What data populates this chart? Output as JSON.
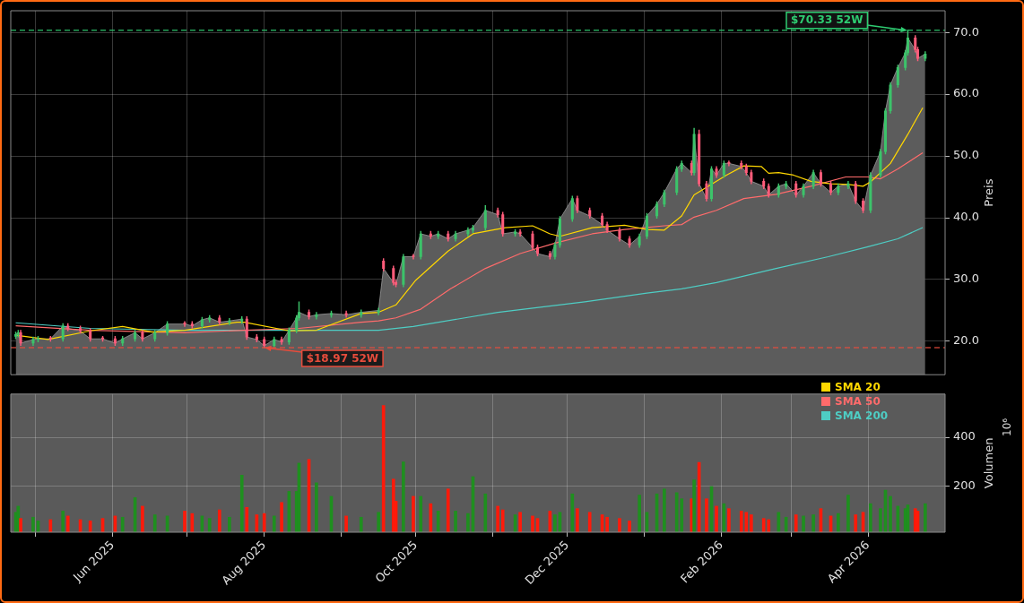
{
  "chart_data": [
    {
      "type": "candlestick",
      "ylabel": "Preis",
      "xlim": [
        "2025-04-21",
        "2026-05-02"
      ],
      "xticks": [
        {
          "value": "2025-05-01",
          "label": null
        },
        {
          "value": "2025-06-01",
          "label": null
        },
        {
          "value": "2025-07-01",
          "label": null
        },
        {
          "value": "2025-08-01",
          "label": null
        },
        {
          "value": "2025-09-01",
          "label": null
        },
        {
          "value": "2025-10-01",
          "label": null
        },
        {
          "value": "2025-11-01",
          "label": null
        },
        {
          "value": "2025-12-01",
          "label": null
        },
        {
          "value": "2026-01-01",
          "label": null
        },
        {
          "value": "2026-02-01",
          "label": null
        },
        {
          "value": "2026-03-01",
          "label": null
        },
        {
          "value": "2026-04-01",
          "label": null
        }
      ],
      "ylim": [
        14.6,
        73.5
      ],
      "yticks": [
        {
          "value": 20,
          "label": "20.0"
        },
        {
          "value": 30,
          "label": "30.0"
        },
        {
          "value": 40,
          "label": "40.0"
        },
        {
          "value": 50,
          "label": "50.0"
        },
        {
          "value": 60,
          "label": "60.0"
        },
        {
          "value": 70,
          "label": "70.0"
        }
      ],
      "tick_labels": "y",
      "grid": true,
      "legend": "bottom right",
      "x": [
        "2025-04-23",
        "2025-04-24",
        "2025-04-25",
        "2025-04-30",
        "2025-05-02",
        "2025-05-07",
        "2025-05-12",
        "2025-05-14",
        "2025-05-19",
        "2025-05-23",
        "2025-05-28",
        "2025-06-02",
        "2025-06-05",
        "2025-06-10",
        "2025-06-13",
        "2025-06-18",
        "2025-06-23",
        "2025-06-30",
        "2025-07-03",
        "2025-07-07",
        "2025-07-10",
        "2025-07-14",
        "2025-07-18",
        "2025-07-23",
        "2025-07-25",
        "2025-07-29",
        "2025-08-01",
        "2025-08-05",
        "2025-08-08",
        "2025-08-11",
        "2025-08-14",
        "2025-08-15",
        "2025-08-19",
        "2025-08-22",
        "2025-08-28",
        "2025-09-03",
        "2025-09-09",
        "2025-09-16",
        "2025-09-18",
        "2025-09-22",
        "2025-09-23",
        "2025-09-26",
        "2025-09-30",
        "2025-10-03",
        "2025-10-07",
        "2025-10-10",
        "2025-10-14",
        "2025-10-17",
        "2025-10-22",
        "2025-10-24",
        "2025-10-29",
        "2025-11-03",
        "2025-11-05",
        "2025-11-10",
        "2025-11-12",
        "2025-11-17",
        "2025-11-19",
        "2025-11-24",
        "2025-11-26",
        "2025-11-28",
        "2025-12-03",
        "2025-12-05",
        "2025-12-10",
        "2025-12-15",
        "2025-12-17",
        "2025-12-22",
        "2025-12-26",
        "2025-12-30",
        "2026-01-02",
        "2026-01-06",
        "2026-01-09",
        "2026-01-14",
        "2026-01-16",
        "2026-01-20",
        "2026-01-21",
        "2026-01-23",
        "2026-01-26",
        "2026-01-28",
        "2026-01-30",
        "2026-02-02",
        "2026-02-04",
        "2026-02-09",
        "2026-02-11",
        "2026-02-13",
        "2026-02-18",
        "2026-02-20",
        "2026-02-24",
        "2026-02-27",
        "2026-03-03",
        "2026-03-06",
        "2026-03-10",
        "2026-03-13",
        "2026-03-17",
        "2026-03-20",
        "2026-03-24",
        "2026-03-27",
        "2026-03-30",
        "2026-04-02",
        "2026-04-06",
        "2026-04-08",
        "2026-04-10",
        "2026-04-13",
        "2026-04-16",
        "2026-04-17",
        "2026-04-20",
        "2026-04-21",
        "2026-04-24"
      ],
      "ohlc": [
        [
          20.8,
          21.5,
          20.4,
          21.1
        ],
        [
          21.1,
          21.8,
          20.7,
          21.4
        ],
        [
          21.4,
          21.8,
          19.3,
          19.7
        ],
        [
          19.7,
          20.7,
          19.3,
          20.3
        ],
        [
          20.3,
          20.8,
          19.9,
          20.4
        ],
        [
          20.4,
          20.8,
          20.0,
          20.4
        ],
        [
          20.4,
          22.9,
          20.0,
          22.5
        ],
        [
          22.5,
          22.9,
          21.7,
          22.1
        ],
        [
          22.1,
          22.5,
          21.3,
          21.7
        ],
        [
          21.7,
          22.1,
          20.0,
          20.4
        ],
        [
          20.4,
          20.8,
          20.0,
          20.4
        ],
        [
          20.4,
          20.8,
          19.3,
          19.7
        ],
        [
          19.7,
          20.8,
          19.3,
          20.4
        ],
        [
          20.4,
          21.8,
          20.0,
          21.4
        ],
        [
          21.4,
          21.8,
          20.0,
          20.4
        ],
        [
          20.4,
          21.8,
          20.0,
          21.4
        ],
        [
          21.4,
          23.2,
          21.0,
          22.8
        ],
        [
          22.8,
          23.2,
          22.4,
          22.8
        ],
        [
          22.8,
          23.2,
          22.1,
          22.5
        ],
        [
          22.5,
          23.9,
          22.1,
          23.5
        ],
        [
          23.5,
          24.2,
          23.1,
          23.8
        ],
        [
          23.8,
          24.2,
          22.7,
          23.1
        ],
        [
          23.1,
          23.7,
          22.7,
          23.3
        ],
        [
          23.3,
          24.0,
          22.9,
          23.6
        ],
        [
          23.6,
          24.0,
          20.3,
          20.7
        ],
        [
          20.7,
          21.1,
          19.9,
          20.3
        ],
        [
          20.3,
          20.7,
          18.97,
          19.3
        ],
        [
          19.3,
          20.7,
          19.0,
          20.3
        ],
        [
          20.3,
          20.7,
          19.5,
          19.9
        ],
        [
          19.9,
          22.2,
          19.5,
          21.8
        ],
        [
          21.8,
          24.2,
          21.4,
          23.8
        ],
        [
          23.8,
          26.4,
          23.4,
          24.7
        ],
        [
          24.7,
          25.1,
          23.6,
          24.0
        ],
        [
          24.0,
          24.7,
          23.6,
          24.3
        ],
        [
          24.3,
          24.9,
          23.9,
          24.5
        ],
        [
          24.5,
          24.9,
          23.9,
          24.3
        ],
        [
          24.3,
          25.1,
          23.9,
          24.7
        ],
        [
          24.7,
          25.4,
          24.3,
          25.0
        ],
        [
          33.0,
          33.4,
          31.4,
          31.8
        ],
        [
          31.8,
          32.2,
          29.1,
          29.5
        ],
        [
          29.5,
          29.9,
          28.8,
          29.2
        ],
        [
          29.2,
          34.1,
          28.8,
          33.7
        ],
        [
          33.7,
          34.1,
          33.3,
          33.7
        ],
        [
          33.7,
          37.8,
          33.3,
          37.4
        ],
        [
          37.4,
          37.8,
          36.6,
          37.0
        ],
        [
          37.0,
          37.8,
          36.6,
          37.4
        ],
        [
          37.4,
          37.8,
          36.2,
          36.6
        ],
        [
          36.6,
          37.8,
          36.2,
          37.4
        ],
        [
          37.4,
          38.4,
          37.0,
          38.0
        ],
        [
          38.0,
          38.8,
          37.6,
          38.4
        ],
        [
          38.4,
          42.0,
          38.0,
          41.2
        ],
        [
          41.2,
          41.6,
          40.1,
          40.5
        ],
        [
          40.5,
          40.9,
          37.0,
          37.4
        ],
        [
          37.4,
          38.1,
          37.0,
          37.7
        ],
        [
          37.7,
          38.1,
          37.0,
          37.4
        ],
        [
          37.4,
          37.8,
          34.8,
          35.2
        ],
        [
          35.2,
          35.6,
          33.8,
          34.2
        ],
        [
          34.2,
          34.6,
          33.3,
          33.7
        ],
        [
          33.7,
          36.0,
          33.3,
          35.6
        ],
        [
          35.6,
          40.2,
          35.2,
          39.8
        ],
        [
          39.8,
          43.5,
          39.4,
          43.1
        ],
        [
          43.1,
          43.5,
          40.8,
          41.2
        ],
        [
          41.2,
          41.6,
          39.9,
          40.3
        ],
        [
          40.3,
          40.7,
          38.5,
          38.9
        ],
        [
          38.9,
          39.3,
          37.6,
          38.0
        ],
        [
          38.0,
          38.4,
          36.2,
          36.6
        ],
        [
          36.6,
          37.0,
          35.2,
          35.6
        ],
        [
          35.6,
          37.4,
          35.2,
          37.0
        ],
        [
          37.0,
          40.7,
          36.6,
          40.3
        ],
        [
          40.3,
          42.6,
          39.9,
          42.2
        ],
        [
          42.2,
          44.5,
          41.8,
          44.1
        ],
        [
          44.1,
          48.3,
          43.7,
          47.9
        ],
        [
          47.9,
          49.2,
          47.5,
          48.8
        ],
        [
          48.8,
          49.2,
          46.9,
          47.3
        ],
        [
          47.3,
          54.5,
          46.9,
          53.5
        ],
        [
          53.5,
          54.2,
          45.1,
          45.5
        ],
        [
          45.5,
          45.9,
          42.7,
          43.1
        ],
        [
          43.1,
          48.3,
          42.7,
          47.9
        ],
        [
          47.9,
          48.3,
          46.5,
          46.9
        ],
        [
          46.9,
          49.2,
          46.5,
          48.8
        ],
        [
          48.8,
          49.2,
          48.4,
          48.8
        ],
        [
          48.8,
          49.2,
          47.9,
          48.3
        ],
        [
          48.3,
          48.7,
          46.9,
          47.3
        ],
        [
          47.3,
          47.7,
          45.5,
          45.9
        ],
        [
          45.9,
          46.3,
          44.7,
          45.1
        ],
        [
          45.1,
          45.5,
          43.3,
          43.7
        ],
        [
          43.7,
          45.5,
          43.3,
          45.1
        ],
        [
          45.1,
          45.9,
          44.7,
          45.5
        ],
        [
          45.5,
          45.9,
          43.3,
          43.7
        ],
        [
          43.7,
          45.5,
          43.3,
          45.1
        ],
        [
          45.1,
          47.7,
          44.7,
          47.3
        ],
        [
          47.3,
          47.7,
          45.1,
          45.5
        ],
        [
          45.5,
          45.9,
          43.7,
          44.1
        ],
        [
          44.1,
          45.5,
          43.7,
          45.1
        ],
        [
          45.1,
          45.9,
          44.7,
          45.5
        ],
        [
          45.5,
          45.9,
          42.3,
          42.7
        ],
        [
          42.7,
          43.1,
          40.8,
          41.2
        ],
        [
          41.2,
          47.3,
          40.8,
          46.9
        ],
        [
          46.9,
          51.1,
          46.5,
          50.7
        ],
        [
          50.7,
          57.7,
          50.3,
          57.3
        ],
        [
          57.3,
          61.9,
          56.9,
          61.5
        ],
        [
          61.5,
          64.7,
          61.1,
          64.3
        ],
        [
          64.3,
          67.1,
          63.9,
          66.7
        ],
        [
          66.7,
          70.33,
          66.3,
          69.1
        ],
        [
          69.1,
          69.5,
          66.8,
          67.2
        ],
        [
          67.2,
          67.6,
          65.4,
          65.8
        ],
        [
          65.8,
          66.9,
          65.4,
          66.5
        ]
      ],
      "series": [
        {
          "type": "area",
          "color": "#5c5c5c",
          "values": [
            21.1,
            21.4,
            19.7,
            20.3,
            20.4,
            20.4,
            22.5,
            22.1,
            21.7,
            20.4,
            20.4,
            19.7,
            20.4,
            21.4,
            20.4,
            21.4,
            22.8,
            22.8,
            22.5,
            23.5,
            23.8,
            23.1,
            23.3,
            23.6,
            20.7,
            20.3,
            19.3,
            20.3,
            19.9,
            21.8,
            23.8,
            24.7,
            24.0,
            24.3,
            24.5,
            24.3,
            24.7,
            25.0,
            31.8,
            29.5,
            29.2,
            33.7,
            33.7,
            37.4,
            37.0,
            37.4,
            36.6,
            37.4,
            38.0,
            38.4,
            41.2,
            40.5,
            37.4,
            37.7,
            37.4,
            35.2,
            34.2,
            33.7,
            35.6,
            39.8,
            43.1,
            41.2,
            40.3,
            38.9,
            38.0,
            36.6,
            35.6,
            37.0,
            40.3,
            42.2,
            44.1,
            47.9,
            48.8,
            47.3,
            53.5,
            45.5,
            43.1,
            47.9,
            46.9,
            48.8,
            48.8,
            48.3,
            47.3,
            45.9,
            45.1,
            43.7,
            45.1,
            45.5,
            43.7,
            45.1,
            47.3,
            45.5,
            44.1,
            45.1,
            45.5,
            42.7,
            41.2,
            46.9,
            50.7,
            57.3,
            61.5,
            64.3,
            66.7,
            69.1,
            67.2,
            65.8,
            66.5
          ]
        },
        {
          "type": "line",
          "name": "SMA 20",
          "color": "#ffd700",
          "x": [
            "2025-04-23",
            "2025-05-06",
            "2025-05-23",
            "2025-06-05",
            "2025-06-17",
            "2025-06-30",
            "2025-07-21",
            "2025-07-24",
            "2025-08-11",
            "2025-08-22",
            "2025-09-09",
            "2025-09-16",
            "2025-09-23",
            "2025-10-01",
            "2025-10-14",
            "2025-10-24",
            "2025-11-06",
            "2025-11-17",
            "2025-11-24",
            "2025-11-28",
            "2025-12-11",
            "2025-12-24",
            "2026-01-02",
            "2026-01-09",
            "2026-01-16",
            "2026-01-21",
            "2026-02-03",
            "2026-02-10",
            "2026-02-17",
            "2026-02-20",
            "2026-02-24",
            "2026-03-02",
            "2026-03-09",
            "2026-03-17",
            "2026-03-24",
            "2026-03-30",
            "2026-04-02",
            "2026-04-10",
            "2026-04-17",
            "2026-04-23"
          ],
          "values": [
            21.0,
            20.3,
            21.7,
            22.4,
            21.5,
            21.8,
            23.1,
            23.1,
            21.7,
            21.8,
            24.5,
            24.7,
            25.9,
            29.9,
            34.6,
            37.4,
            38.4,
            38.7,
            37.4,
            37.0,
            38.4,
            38.8,
            38.1,
            38.0,
            40.3,
            43.7,
            46.9,
            48.4,
            48.3,
            47.2,
            47.3,
            46.9,
            45.9,
            45.5,
            45.4,
            45.1,
            45.8,
            48.8,
            53.5,
            57.8
          ]
        },
        {
          "type": "line",
          "name": "SMA 50",
          "color": "#ff6b6b",
          "x": [
            "2025-04-23",
            "2025-05-23",
            "2025-06-30",
            "2025-07-24",
            "2025-08-15",
            "2025-09-09",
            "2025-09-16",
            "2025-09-23",
            "2025-10-03",
            "2025-10-15",
            "2025-10-29",
            "2025-11-12",
            "2025-11-26",
            "2025-12-11",
            "2025-12-24",
            "2026-01-09",
            "2026-01-16",
            "2026-01-21",
            "2026-01-30",
            "2026-02-10",
            "2026-02-23",
            "2026-03-09",
            "2026-03-23",
            "2026-04-01",
            "2026-04-06",
            "2026-04-13",
            "2026-04-23"
          ],
          "values": [
            22.5,
            21.8,
            21.4,
            21.8,
            22.1,
            23.1,
            23.3,
            23.8,
            25.2,
            28.5,
            31.8,
            34.2,
            35.9,
            37.4,
            38.1,
            38.7,
            38.9,
            40.1,
            41.2,
            43.1,
            43.8,
            45.1,
            46.6,
            46.6,
            46.3,
            47.9,
            50.5
          ]
        },
        {
          "type": "line",
          "name": "SMA 200",
          "color": "#4ecdc4",
          "x": [
            "2025-04-23",
            "2025-05-23",
            "2025-06-30",
            "2025-08-15",
            "2025-09-16",
            "2025-09-30",
            "2025-11-03",
            "2025-12-08",
            "2026-01-02",
            "2026-01-16",
            "2026-01-30",
            "2026-02-23",
            "2026-03-16",
            "2026-04-01",
            "2026-04-13",
            "2026-04-23"
          ],
          "values": [
            23.0,
            22.1,
            21.8,
            21.8,
            21.8,
            22.4,
            24.7,
            26.4,
            27.8,
            28.5,
            29.5,
            31.8,
            33.7,
            35.3,
            36.6,
            38.4
          ]
        }
      ],
      "ref_lines": [
        {
          "axis": "y",
          "value": 70.33,
          "label": "$70.33 52W",
          "color": "#2ecc71",
          "line_style": "dashed"
        },
        {
          "axis": "y",
          "value": 18.97,
          "label": "$18.97 52W",
          "color": "#e74c3c",
          "line_style": "dashed"
        }
      ]
    },
    {
      "type": "bar",
      "ylabel": "Volumen",
      "annotations": [
        "10⁶"
      ],
      "xlim": [
        "2025-04-21",
        "2026-05-02"
      ],
      "xticks": [
        {
          "value": "2025-05-01",
          "label": null
        },
        {
          "value": "2025-06-01",
          "label": "Jun 2025"
        },
        {
          "value": "2025-07-01",
          "label": null
        },
        {
          "value": "2025-08-01",
          "label": "Aug 2025"
        },
        {
          "value": "2025-09-01",
          "label": null
        },
        {
          "value": "2025-10-01",
          "label": "Oct 2025"
        },
        {
          "value": "2025-11-01",
          "label": null
        },
        {
          "value": "2025-12-01",
          "label": "Dec 2025"
        },
        {
          "value": "2026-01-01",
          "label": null
        },
        {
          "value": "2026-02-01",
          "label": "Feb 2026"
        },
        {
          "value": "2026-03-01",
          "label": null
        },
        {
          "value": "2026-04-01",
          "label": "Apr 2026"
        }
      ],
      "ylim": [
        14,
        576
      ],
      "yticks": [
        200,
        400
      ],
      "grid": true,
      "x": [
        "2025-04-23",
        "2025-04-24",
        "2025-04-25",
        "2025-04-30",
        "2025-05-02",
        "2025-05-07",
        "2025-05-12",
        "2025-05-14",
        "2025-05-19",
        "2025-05-23",
        "2025-05-28",
        "2025-06-02",
        "2025-06-05",
        "2025-06-10",
        "2025-06-13",
        "2025-06-18",
        "2025-06-23",
        "2025-06-30",
        "2025-07-03",
        "2025-07-07",
        "2025-07-10",
        "2025-07-14",
        "2025-07-18",
        "2025-07-23",
        "2025-07-25",
        "2025-07-29",
        "2025-08-01",
        "2025-08-05",
        "2025-08-08",
        "2025-08-11",
        "2025-08-14",
        "2025-08-15",
        "2025-08-19",
        "2025-08-22",
        "2025-08-28",
        "2025-09-03",
        "2025-09-09",
        "2025-09-16",
        "2025-09-18",
        "2025-09-22",
        "2025-09-23",
        "2025-09-26",
        "2025-09-30",
        "2025-10-03",
        "2025-10-07",
        "2025-10-10",
        "2025-10-14",
        "2025-10-17",
        "2025-10-22",
        "2025-10-24",
        "2025-10-29",
        "2025-11-03",
        "2025-11-05",
        "2025-11-10",
        "2025-11-12",
        "2025-11-17",
        "2025-11-19",
        "2025-11-24",
        "2025-11-26",
        "2025-11-28",
        "2025-12-03",
        "2025-12-05",
        "2025-12-10",
        "2025-12-15",
        "2025-12-17",
        "2025-12-22",
        "2025-12-26",
        "2025-12-30",
        "2026-01-02",
        "2026-01-06",
        "2026-01-09",
        "2026-01-14",
        "2026-01-16",
        "2026-01-20",
        "2026-01-21",
        "2026-01-23",
        "2026-01-26",
        "2026-01-28",
        "2026-01-30",
        "2026-02-02",
        "2026-02-04",
        "2026-02-09",
        "2026-02-11",
        "2026-02-13",
        "2026-02-18",
        "2026-02-20",
        "2026-02-24",
        "2026-02-27",
        "2026-03-03",
        "2026-03-06",
        "2026-03-10",
        "2026-03-13",
        "2026-03-17",
        "2026-03-20",
        "2026-03-24",
        "2026-03-27",
        "2026-03-30",
        "2026-04-02",
        "2026-04-06",
        "2026-04-08",
        "2026-04-10",
        "2026-04-13",
        "2026-04-16",
        "2026-04-17",
        "2026-04-20",
        "2026-04-21",
        "2026-04-24"
      ],
      "values": [
        95,
        120,
        70,
        75,
        60,
        65,
        100,
        80,
        65,
        60,
        70,
        80,
        75,
        155,
        120,
        85,
        80,
        100,
        90,
        80,
        70,
        105,
        75,
        246,
        115,
        85,
        90,
        80,
        135,
        180,
        180,
        295,
        310,
        215,
        160,
        80,
        75,
        95,
        529,
        230,
        140,
        300,
        160,
        160,
        130,
        100,
        190,
        100,
        90,
        240,
        170,
        120,
        105,
        85,
        95,
        80,
        70,
        100,
        85,
        95,
        170,
        110,
        95,
        85,
        75,
        70,
        60,
        165,
        95,
        170,
        190,
        175,
        150,
        150,
        227,
        298,
        150,
        200,
        120,
        130,
        110,
        100,
        95,
        85,
        70,
        65,
        95,
        75,
        85,
        80,
        85,
        110,
        80,
        90,
        165,
        85,
        95,
        130,
        110,
        185,
        160,
        120,
        110,
        125,
        110,
        100,
        130
      ],
      "colors": [
        "#1f8f1f",
        "#1f8f1f",
        "#ff1a0a",
        "#1f8f1f",
        "#1f8f1f",
        "#ff1a0a",
        "#1f8f1f",
        "#ff1a0a",
        "#ff1a0a",
        "#ff1a0a",
        "#ff1a0a",
        "#ff1a0a",
        "#1f8f1f",
        "#1f8f1f",
        "#ff1a0a",
        "#1f8f1f",
        "#1f8f1f",
        "#ff1a0a",
        "#ff1a0a",
        "#1f8f1f",
        "#1f8f1f",
        "#ff1a0a",
        "#1f8f1f",
        "#1f8f1f",
        "#ff1a0a",
        "#ff1a0a",
        "#ff1a0a",
        "#1f8f1f",
        "#ff1a0a",
        "#1f8f1f",
        "#1f8f1f",
        "#1f8f1f",
        "#ff1a0a",
        "#1f8f1f",
        "#1f8f1f",
        "#ff1a0a",
        "#1f8f1f",
        "#1f8f1f",
        "#ff1a0a",
        "#ff1a0a",
        "#ff1a0a",
        "#1f8f1f",
        "#ff1a0a",
        "#1f8f1f",
        "#ff1a0a",
        "#1f8f1f",
        "#ff1a0a",
        "#1f8f1f",
        "#1f8f1f",
        "#1f8f1f",
        "#1f8f1f",
        "#ff1a0a",
        "#ff1a0a",
        "#1f8f1f",
        "#ff1a0a",
        "#ff1a0a",
        "#ff1a0a",
        "#ff1a0a",
        "#1f8f1f",
        "#1f8f1f",
        "#1f8f1f",
        "#ff1a0a",
        "#ff1a0a",
        "#ff1a0a",
        "#ff1a0a",
        "#ff1a0a",
        "#ff1a0a",
        "#1f8f1f",
        "#1f8f1f",
        "#1f8f1f",
        "#1f8f1f",
        "#1f8f1f",
        "#1f8f1f",
        "#ff1a0a",
        "#1f8f1f",
        "#ff1a0a",
        "#ff1a0a",
        "#1f8f1f",
        "#ff1a0a",
        "#1f8f1f",
        "#ff1a0a",
        "#ff1a0a",
        "#ff1a0a",
        "#ff1a0a",
        "#ff1a0a",
        "#ff1a0a",
        "#1f8f1f",
        "#1f8f1f",
        "#ff1a0a",
        "#1f8f1f",
        "#1f8f1f",
        "#ff1a0a",
        "#ff1a0a",
        "#1f8f1f",
        "#1f8f1f",
        "#ff1a0a",
        "#ff1a0a",
        "#1f8f1f",
        "#1f8f1f",
        "#1f8f1f",
        "#1f8f1f",
        "#1f8f1f",
        "#1f8f1f",
        "#1f8f1f",
        "#ff1a0a",
        "#ff1a0a",
        "#1f8f1f"
      ]
    }
  ]
}
